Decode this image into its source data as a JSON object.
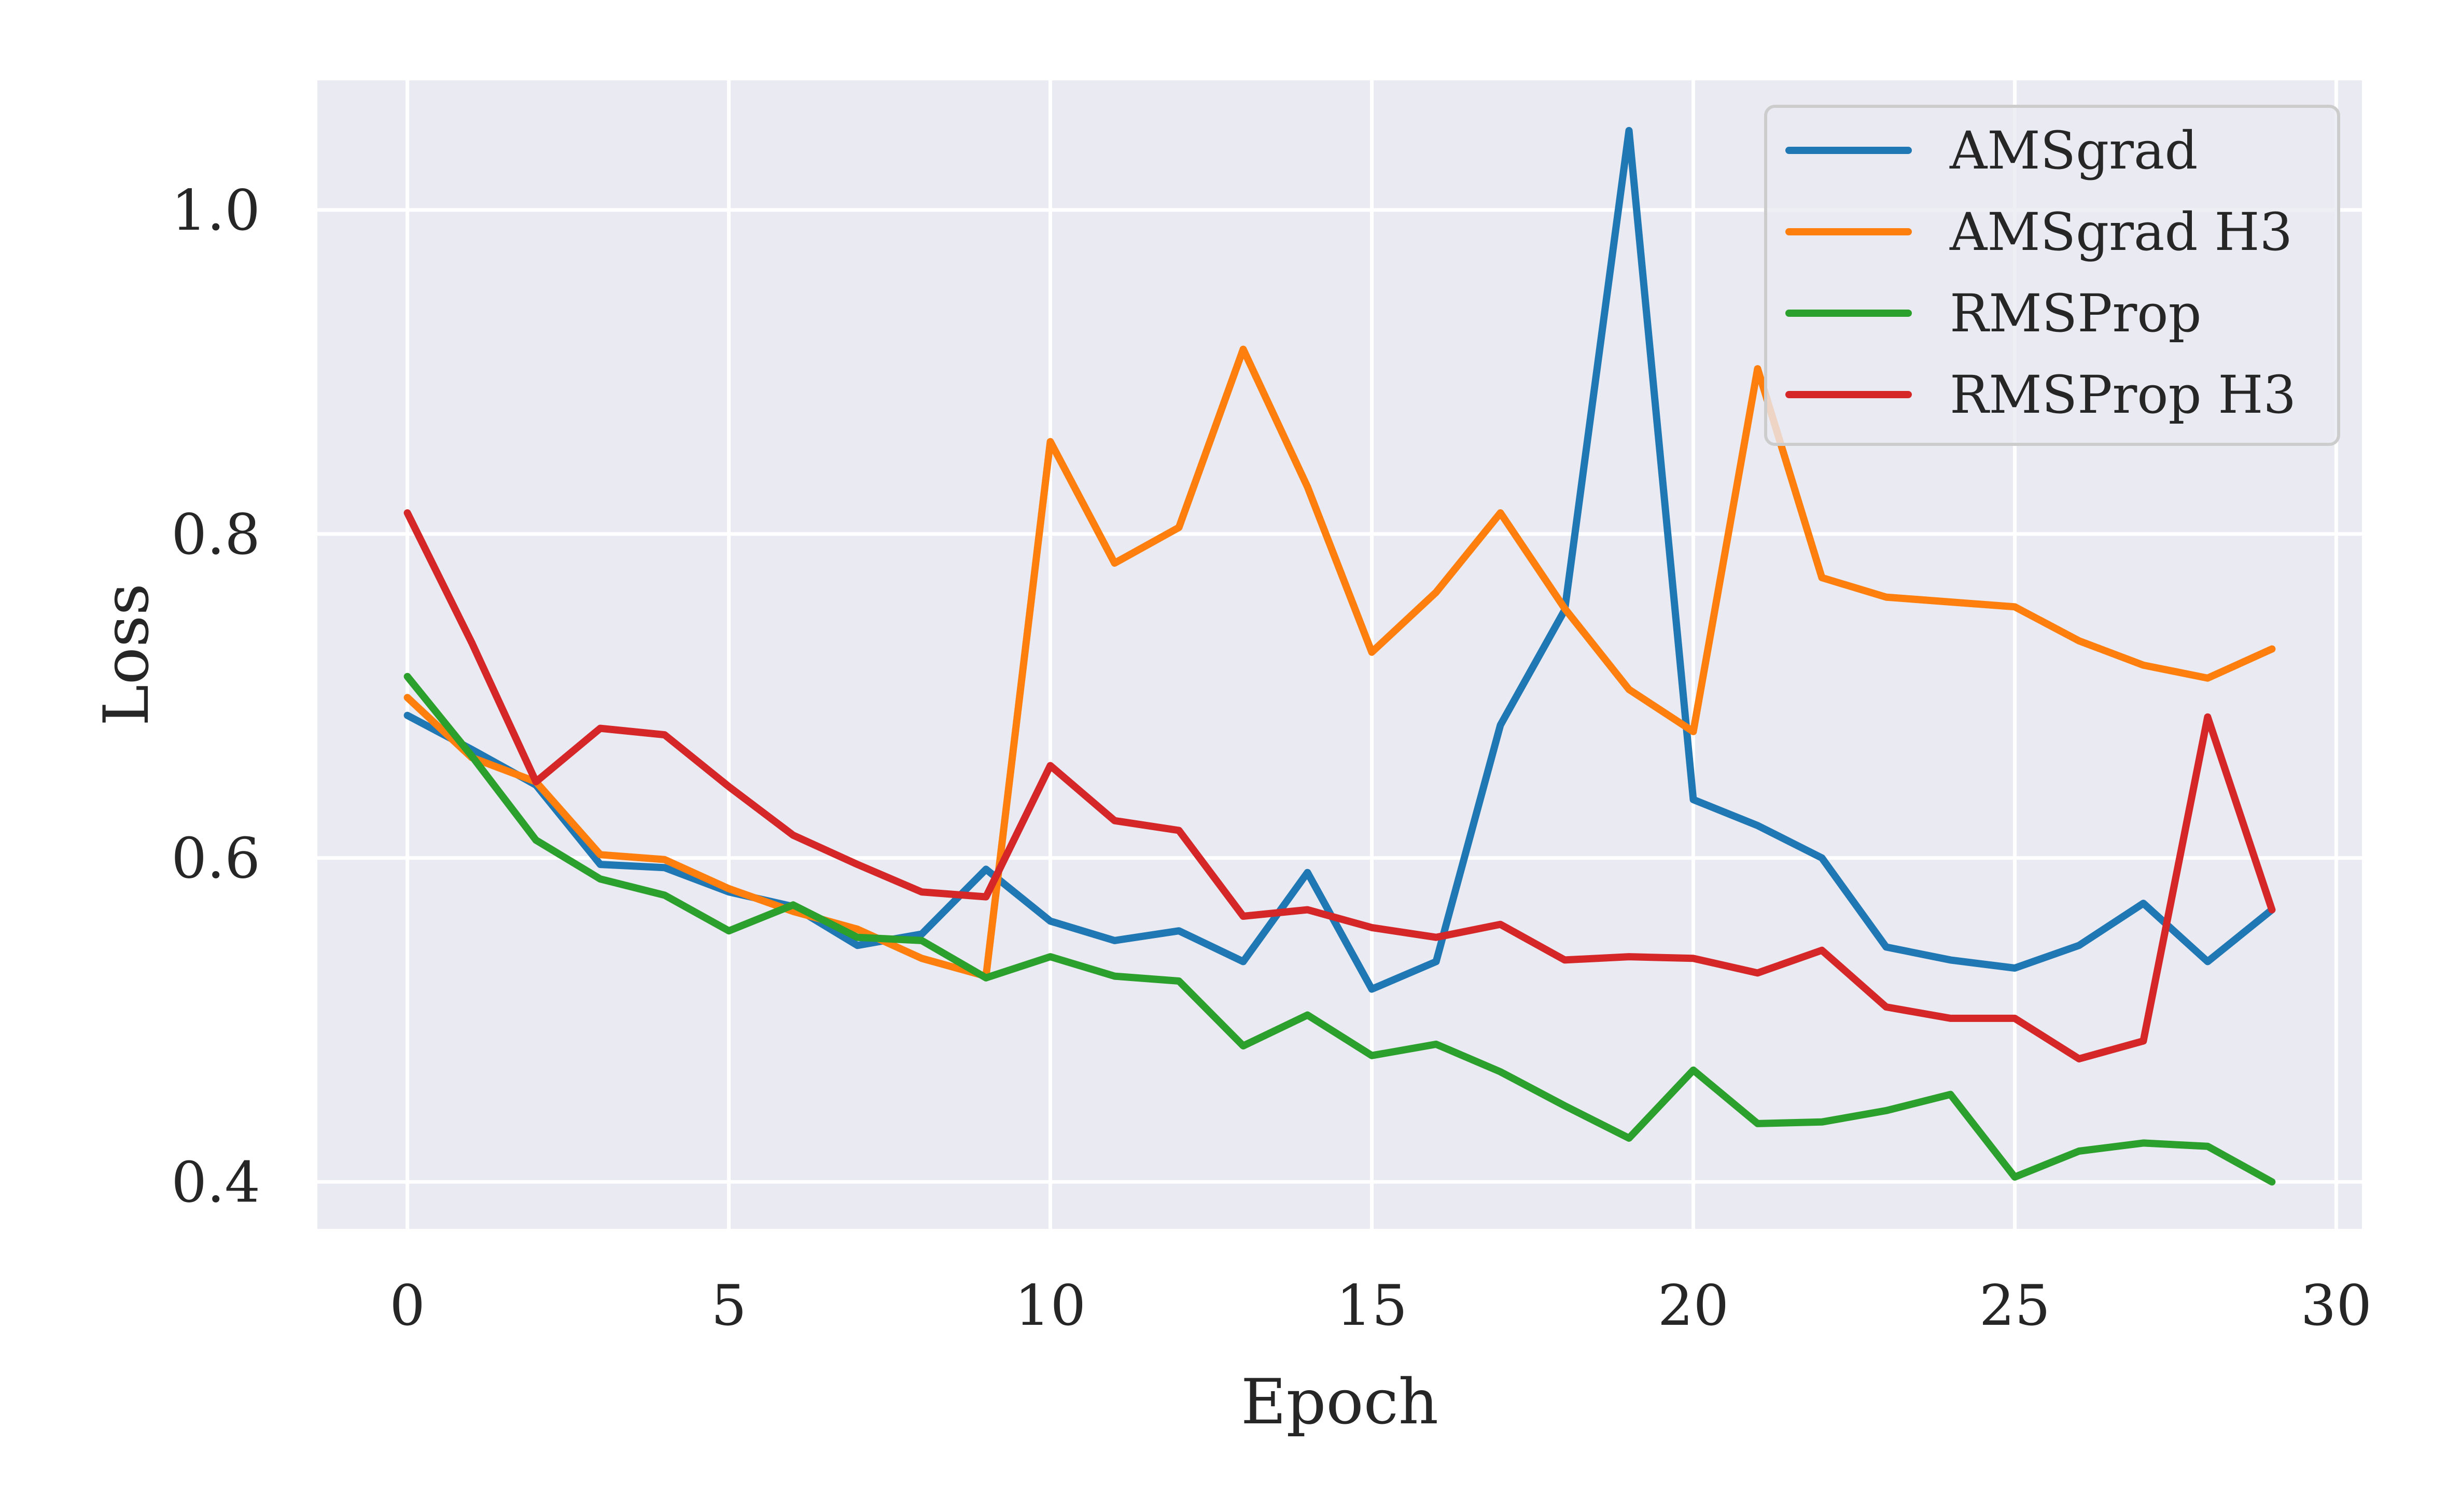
{
  "chart_data": {
    "type": "line",
    "title": "",
    "xlabel": "Epoch",
    "ylabel": "Loss",
    "xlim": [
      -1.4,
      30.4
    ],
    "ylim": [
      0.371,
      1.08
    ],
    "xticks": [
      0,
      5,
      10,
      15,
      20,
      25,
      30
    ],
    "xtick_labels": [
      "0",
      "5",
      "10",
      "15",
      "20",
      "25",
      "30"
    ],
    "yticks": [
      0.4,
      0.6,
      0.8,
      1.0
    ],
    "ytick_labels": [
      "0.4",
      "0.6",
      "0.8",
      "1.0"
    ],
    "grid": true,
    "legend_position": "top-right",
    "x": [
      0,
      1,
      2,
      3,
      4,
      5,
      6,
      7,
      8,
      9,
      10,
      11,
      12,
      13,
      14,
      15,
      16,
      17,
      18,
      19,
      20,
      21,
      22,
      23,
      24,
      25,
      26,
      27,
      28,
      29
    ],
    "series": [
      {
        "name": "AMSgrad",
        "color": "#1f77b4",
        "values": [
          0.688,
          0.667,
          0.645,
          0.596,
          0.594,
          0.579,
          0.57,
          0.546,
          0.553,
          0.593,
          0.561,
          0.549,
          0.555,
          0.536,
          0.591,
          0.519,
          0.536,
          0.682,
          0.753,
          1.049,
          0.636,
          0.62,
          0.6,
          0.545,
          0.537,
          0.532,
          0.546,
          0.572,
          0.536,
          0.568
        ]
      },
      {
        "name": "AMSgrad H3",
        "color": "#ff7f0e",
        "values": [
          0.699,
          0.662,
          0.647,
          0.602,
          0.599,
          0.581,
          0.567,
          0.556,
          0.538,
          0.527,
          0.857,
          0.782,
          0.804,
          0.914,
          0.829,
          0.727,
          0.764,
          0.813,
          0.754,
          0.704,
          0.678,
          0.902,
          0.773,
          0.761,
          0.758,
          0.755,
          0.734,
          0.719,
          0.711,
          0.729
        ]
      },
      {
        "name": "RMSProp",
        "color": "#2ca02c",
        "values": [
          0.712,
          0.663,
          0.611,
          0.587,
          0.577,
          0.555,
          0.571,
          0.551,
          0.549,
          0.526,
          0.539,
          0.527,
          0.524,
          0.484,
          0.503,
          0.478,
          0.485,
          0.468,
          0.447,
          0.427,
          0.469,
          0.436,
          0.437,
          0.444,
          0.454,
          0.403,
          0.419,
          0.424,
          0.422,
          0.4
        ]
      },
      {
        "name": "RMSProp H3",
        "color": "#d62728",
        "values": [
          0.813,
          0.733,
          0.647,
          0.68,
          0.676,
          0.644,
          0.614,
          0.596,
          0.579,
          0.576,
          0.657,
          0.623,
          0.617,
          0.564,
          0.568,
          0.557,
          0.551,
          0.559,
          0.537,
          0.539,
          0.538,
          0.529,
          0.543,
          0.508,
          0.501,
          0.501,
          0.476,
          0.487,
          0.687,
          0.568
        ]
      }
    ]
  }
}
